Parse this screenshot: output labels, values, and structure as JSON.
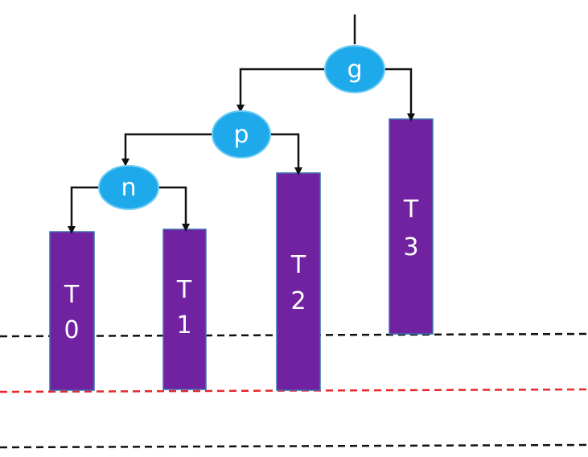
{
  "colors": {
    "node_fill": "#1ea9ea",
    "node_stroke": "#6fcdf6",
    "subtree_fill": "#7122a0",
    "subtree_stroke": "#3b73b0",
    "height_line_top": "#111111",
    "height_line_middle": "#e8262b",
    "height_line_bottom": "#111111",
    "edge": "#111111"
  },
  "nodes": {
    "g": {
      "label": "g"
    },
    "p": {
      "label": "p"
    },
    "n": {
      "label": "n"
    }
  },
  "subtrees": {
    "T0": {
      "line1": "T",
      "line2": "0"
    },
    "T1": {
      "line1": "T",
      "line2": "1"
    },
    "T2": {
      "line1": "T",
      "line2": "2"
    },
    "T3": {
      "line1": "T",
      "line2": "3"
    }
  }
}
